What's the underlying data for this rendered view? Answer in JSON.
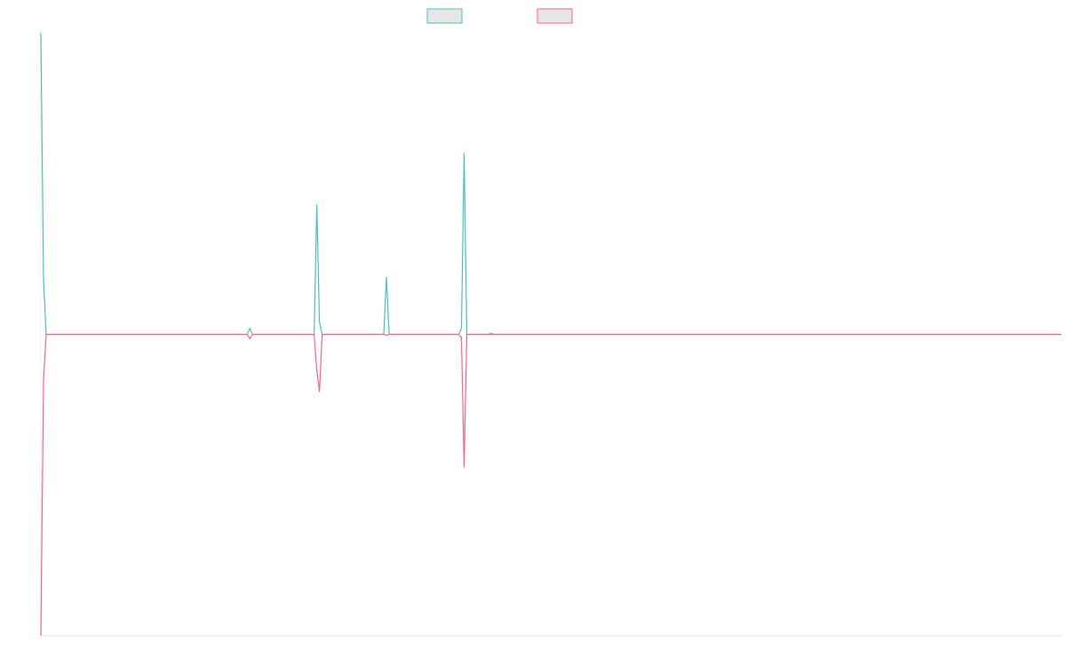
{
  "chart_data": {
    "type": "line",
    "title": "",
    "xlabel": "",
    "ylabel": "",
    "xlim": [
      0,
      381
    ],
    "ylim": [
      -1.0,
      1.0
    ],
    "grid": false,
    "legend": {
      "placement": "top-center",
      "entries": [
        "",
        ""
      ]
    },
    "series": [
      {
        "name": "",
        "color": "#4bc0c0",
        "fill": "#e6e6e6",
        "points": [
          [
            0,
            1.0
          ],
          [
            1,
            0.18
          ],
          [
            2,
            0.0
          ],
          [
            77,
            0.0
          ],
          [
            78,
            0.02
          ],
          [
            79,
            0.0
          ],
          [
            102,
            0.0
          ],
          [
            103,
            0.43
          ],
          [
            104,
            0.04
          ],
          [
            105,
            0.0
          ],
          [
            128,
            0.0
          ],
          [
            129,
            0.19
          ],
          [
            130,
            0.0
          ],
          [
            156,
            0.0
          ],
          [
            157,
            0.02
          ],
          [
            158,
            0.6
          ],
          [
            159,
            0.0
          ],
          [
            167,
            0.0
          ],
          [
            168,
            0.003
          ],
          [
            169,
            0.0
          ],
          [
            381,
            0.0
          ]
        ]
      },
      {
        "name": "",
        "color": "#ff6384",
        "fill": "#e6e6e6",
        "points": [
          [
            0,
            -1.0
          ],
          [
            1,
            -0.15
          ],
          [
            2,
            0.0
          ],
          [
            77,
            0.0
          ],
          [
            78,
            -0.015
          ],
          [
            79,
            0.0
          ],
          [
            102,
            0.0
          ],
          [
            103,
            -0.12
          ],
          [
            104,
            -0.19
          ],
          [
            105,
            0.0
          ],
          [
            128,
            0.0
          ],
          [
            129,
            -0.003
          ],
          [
            130,
            0.0
          ],
          [
            156,
            0.0
          ],
          [
            157,
            -0.01
          ],
          [
            158,
            -0.44
          ],
          [
            159,
            0.0
          ],
          [
            381,
            0.0
          ]
        ]
      }
    ]
  }
}
